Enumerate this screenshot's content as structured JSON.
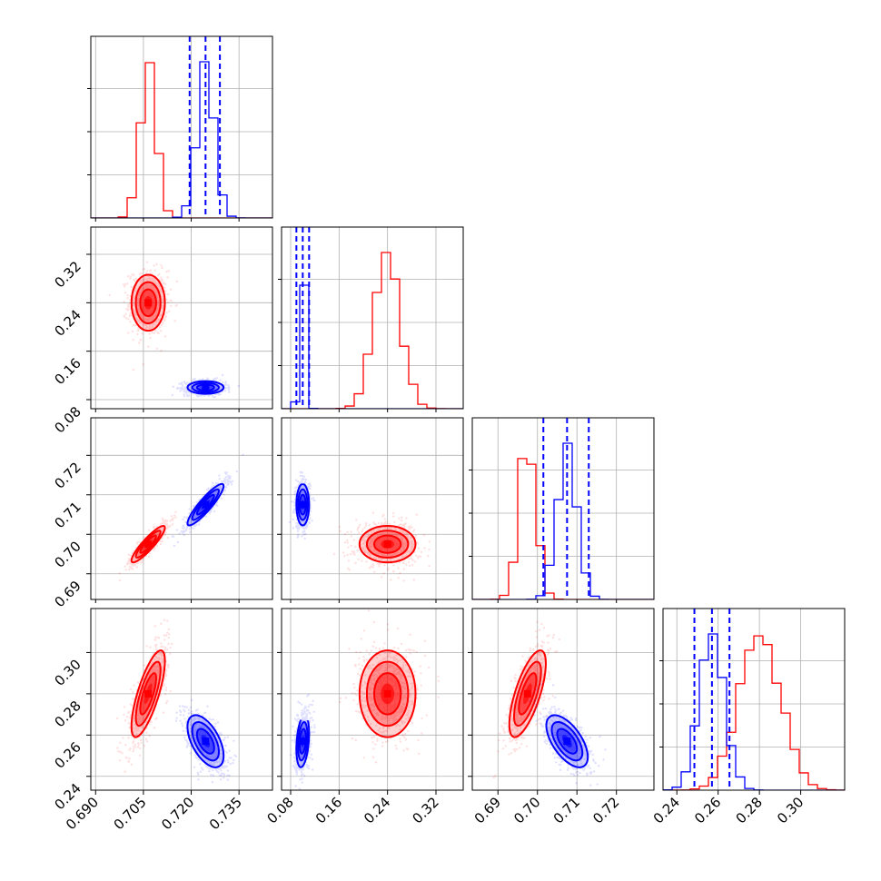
{
  "chart_data": {
    "type": "corner",
    "parameters": 4,
    "colors": {
      "red": "#ff0000",
      "blue": "#0000ff"
    },
    "grid": true,
    "tick_labels": {
      "p0": [
        "0.690",
        "0.705",
        "0.720",
        "0.735"
      ],
      "p1": [
        "0.08",
        "0.16",
        "0.24",
        "0.32"
      ],
      "p2": [
        "0.69",
        "0.70",
        "0.71",
        "0.72"
      ],
      "p3": [
        "0.24",
        "0.26",
        "0.28",
        "0.30"
      ]
    },
    "ranges": {
      "p0": [
        0.6885,
        0.7455
      ],
      "p1": [
        0.065,
        0.365
      ],
      "p2": [
        0.6835,
        0.7295
      ],
      "p3": [
        0.2333,
        0.3213
      ]
    },
    "series": [
      {
        "color": "red",
        "means": [
          0.7065,
          0.24,
          0.6975,
          0.28
        ],
        "sds": [
          0.0025,
          0.022,
          0.0022,
          0.01
        ],
        "correlations": {
          "0-1": 0,
          "0-2": 0.9,
          "0-3": 0.75,
          "1-2": 0,
          "1-3": 0,
          "2-3": 0.7
        }
      },
      {
        "color": "blue",
        "means": [
          0.7245,
          0.1,
          0.7075,
          0.257
        ],
        "sds": [
          0.0027,
          0.005,
          0.0025,
          0.006
        ],
        "correlations": {
          "0-1": 0,
          "0-2": 0.9,
          "0-3": -0.55,
          "1-2": 0,
          "1-3": 0.3,
          "2-3": -0.6
        },
        "quantile_lines": [
          [
            0.7195,
            0.7245,
            0.729
          ],
          [
            0.0895,
            0.1,
            0.1105
          ],
          [
            0.7015,
            0.7075,
            0.713
          ],
          [
            0.2485,
            0.257,
            0.2655
          ]
        ]
      }
    ]
  }
}
